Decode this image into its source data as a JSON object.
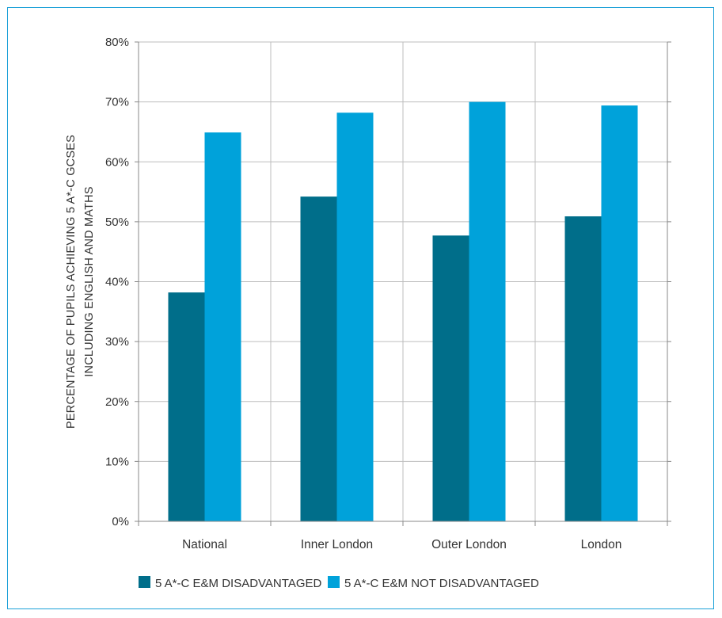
{
  "chart_data": {
    "type": "bar",
    "categories": [
      "National",
      "Inner London",
      "Outer London",
      "London"
    ],
    "series": [
      {
        "name": "5 A*-C E&M DISADVANTAGED",
        "values": [
          38.2,
          54.2,
          47.7,
          50.9
        ],
        "color": "#006e8a"
      },
      {
        "name": "5 A*-C E&M NOT DISADVANTAGED",
        "values": [
          64.9,
          68.2,
          70.0,
          69.4
        ],
        "color": "#00a2da"
      }
    ],
    "ylabel_lines": [
      "PERCENTAGE OF PUPILS ACHIEVING 5 A*-C GCSES",
      "INCLUDING ENGLISH AND MATHS"
    ],
    "xlabel": "",
    "ylim": [
      0,
      80
    ],
    "yticks": [
      0,
      10,
      20,
      30,
      40,
      50,
      60,
      70,
      80
    ],
    "ytick_labels": [
      "0%",
      "10%",
      "20%",
      "30%",
      "40%",
      "50%",
      "60%",
      "70%",
      "80%"
    ],
    "grid": true,
    "legend_position": "bottom-center",
    "colors": {
      "frame": "#1aa0d8",
      "grid": "#bdbdbd",
      "axis": "#888888"
    }
  }
}
